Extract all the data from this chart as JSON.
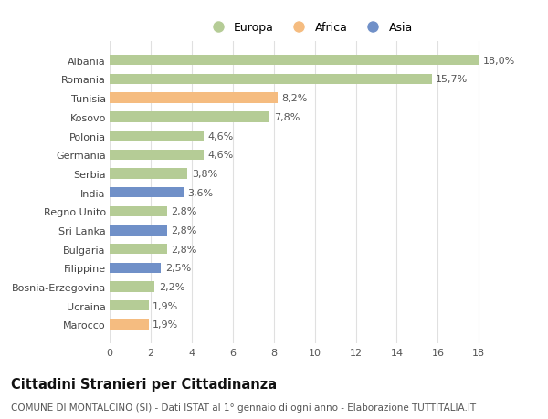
{
  "countries": [
    "Albania",
    "Romania",
    "Tunisia",
    "Kosovo",
    "Polonia",
    "Germania",
    "Serbia",
    "India",
    "Regno Unito",
    "Sri Lanka",
    "Bulgaria",
    "Filippine",
    "Bosnia-Erzegovina",
    "Ucraina",
    "Marocco"
  ],
  "values": [
    18.0,
    15.7,
    8.2,
    7.8,
    4.6,
    4.6,
    3.8,
    3.6,
    2.8,
    2.8,
    2.8,
    2.5,
    2.2,
    1.9,
    1.9
  ],
  "labels": [
    "18,0%",
    "15,7%",
    "8,2%",
    "7,8%",
    "4,6%",
    "4,6%",
    "3,8%",
    "3,6%",
    "2,8%",
    "2,8%",
    "2,8%",
    "2,5%",
    "2,2%",
    "1,9%",
    "1,9%"
  ],
  "continents": [
    "Europa",
    "Europa",
    "Africa",
    "Europa",
    "Europa",
    "Europa",
    "Europa",
    "Asia",
    "Europa",
    "Asia",
    "Europa",
    "Asia",
    "Europa",
    "Europa",
    "Africa"
  ],
  "colors": {
    "Europa": "#b5cc96",
    "Africa": "#f5bc80",
    "Asia": "#7090c8"
  },
  "xlim": [
    0,
    19.5
  ],
  "xticks": [
    0,
    2,
    4,
    6,
    8,
    10,
    12,
    14,
    16,
    18
  ],
  "title": "Cittadini Stranieri per Cittadinanza",
  "subtitle": "COMUNE DI MONTALCINO (SI) - Dati ISTAT al 1° gennaio di ogni anno - Elaborazione TUTTITALIA.IT",
  "background_color": "#ffffff",
  "grid_color": "#e0e0e0",
  "bar_height": 0.55,
  "label_fontsize": 8.0,
  "ytick_fontsize": 8.0,
  "xtick_fontsize": 8.0,
  "title_fontsize": 10.5,
  "subtitle_fontsize": 7.5,
  "legend_fontsize": 9.0
}
